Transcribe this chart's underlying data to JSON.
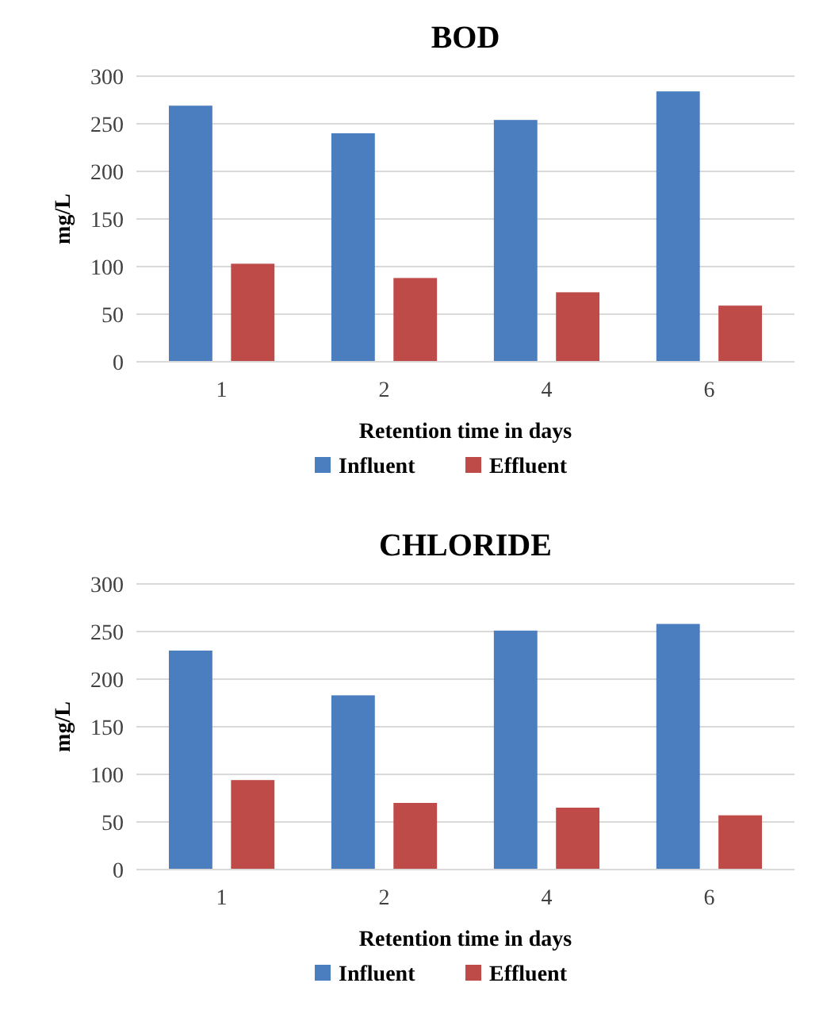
{
  "chart_data": [
    {
      "type": "bar",
      "title": "BOD",
      "xlabel": "Retention time in days",
      "ylabel": "mg/L",
      "categories": [
        "1",
        "2",
        "4",
        "6"
      ],
      "series": [
        {
          "name": "Influent",
          "color": "#4a7ebf",
          "values": [
            269,
            240,
            254,
            284
          ]
        },
        {
          "name": "Effluent",
          "color": "#be4b48",
          "values": [
            103,
            88,
            73,
            59
          ]
        }
      ],
      "ylim": [
        0,
        300
      ],
      "yticks": [
        0,
        50,
        100,
        150,
        200,
        250,
        300
      ],
      "grid": "y",
      "legend": "bottom"
    },
    {
      "type": "bar",
      "title": "CHLORIDE",
      "xlabel": "Retention time in days",
      "ylabel": "mg/L",
      "categories": [
        "1",
        "2",
        "4",
        "6"
      ],
      "series": [
        {
          "name": "Influent",
          "color": "#4a7ebf",
          "values": [
            230,
            183,
            251,
            258
          ]
        },
        {
          "name": "Effluent",
          "color": "#be4b48",
          "values": [
            94,
            70,
            65,
            57
          ]
        }
      ],
      "ylim": [
        0,
        300
      ],
      "yticks": [
        0,
        50,
        100,
        150,
        200,
        250,
        300
      ],
      "grid": "y",
      "legend": "bottom"
    }
  ]
}
